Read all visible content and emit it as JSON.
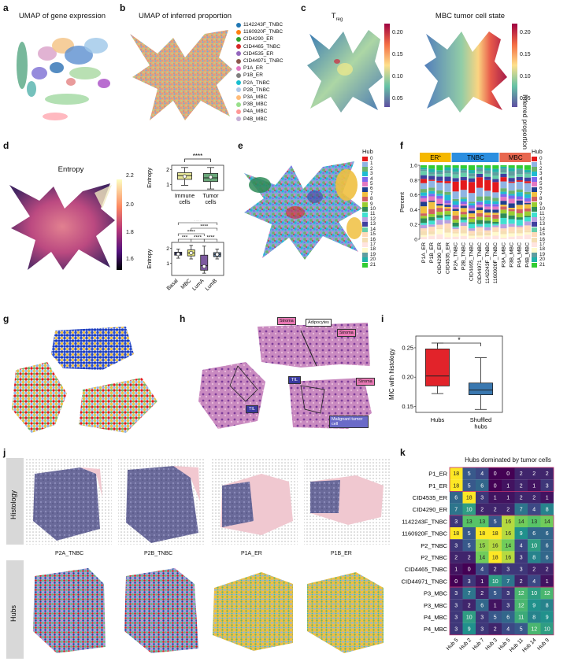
{
  "panels": {
    "a": {
      "letter": "a",
      "title": "UMAP of gene expression"
    },
    "b": {
      "letter": "b",
      "title": "UMAP of inferred proportion",
      "legend": [
        {
          "label": "1142243F_TNBC",
          "color": "#1f77b4"
        },
        {
          "label": "1160920F_TNBC",
          "color": "#ff7f0e"
        },
        {
          "label": "CID4290_ER",
          "color": "#2ca02c"
        },
        {
          "label": "CID4465_TNBC",
          "color": "#d62728"
        },
        {
          "label": "CID4535_ER",
          "color": "#9467bd"
        },
        {
          "label": "CID44971_TNBC",
          "color": "#8c564b"
        },
        {
          "label": "P1A_ER",
          "color": "#e377c2"
        },
        {
          "label": "P1B_ER",
          "color": "#7f7f7f"
        },
        {
          "label": "P2A_TNBC",
          "color": "#17becf"
        },
        {
          "label": "P2B_TNBC",
          "color": "#aec7e8"
        },
        {
          "label": "P3A_MBC",
          "color": "#ffbb78"
        },
        {
          "label": "P3B_MBC",
          "color": "#98df8a"
        },
        {
          "label": "P4A_MBC",
          "color": "#ff9896"
        },
        {
          "label": "P4B_MBC",
          "color": "#c5b0d5"
        }
      ]
    },
    "c": {
      "letter": "c",
      "title_left_main": "T",
      "title_left_sub": "reg",
      "title_right": "MBC tumor cell state",
      "colorbar_ticks": [
        "0.20",
        "0.15",
        "0.10",
        "0.05"
      ],
      "colorbar_label": "Inferred proportion"
    },
    "d": {
      "letter": "d",
      "title": "Entropy",
      "colorbar_ticks": [
        "2.2",
        "2.0",
        "1.8",
        "1.6"
      ]
    },
    "e": {
      "letter": "e",
      "hub_title": "Hub"
    },
    "f": {
      "letter": "f",
      "hub_title": "Hub",
      "ylabel": "Percent",
      "groups": [
        {
          "label": "ER",
          "sup": "+",
          "color": "#f5b800"
        },
        {
          "label": "TNBC",
          "color": "#2c8fe0"
        },
        {
          "label": "MBC",
          "color": "#e8674f"
        }
      ]
    },
    "g": {
      "letter": "g"
    },
    "h": {
      "letter": "h",
      "annotations": [
        "Stroma",
        "Adipocytes",
        "Stroma",
        "Stroma",
        "TIL",
        "TIL",
        "Malignant tumor cell"
      ]
    },
    "i": {
      "letter": "i",
      "ylabel": "MIC with histology",
      "significance": "*"
    },
    "j": {
      "letter": "j",
      "row_labels": [
        "Histology",
        "Hubs"
      ],
      "samples": [
        "P2A_TNBC",
        "P2B_TNBC",
        "P1A_ER",
        "P1B_ER"
      ]
    },
    "k": {
      "letter": "k",
      "title": "Hubs dominated by tumor cells"
    }
  },
  "hubs": [
    "0",
    "1",
    "2",
    "3",
    "4",
    "5",
    "6",
    "7",
    "8",
    "9",
    "10",
    "11",
    "12",
    "13",
    "14",
    "15",
    "16",
    "17",
    "18",
    "19",
    "20",
    "21"
  ],
  "hub_colors": [
    "#e41a1c",
    "#8fb4e3",
    "#6bb36b",
    "#1fbcd2",
    "#7b68ee",
    "#e377c2",
    "#1f3f8f",
    "#f0c040",
    "#d06060",
    "#9acd32",
    "#2e8b57",
    "#40e0d0",
    "#b9a0e0",
    "#3f3f9f",
    "#66cdaa",
    "#ffdab9",
    "#f5deb3",
    "#ffe4e1",
    "#fffacd",
    "#5f9ea0",
    "#20b2aa",
    "#32cd32"
  ],
  "chart_data": [
    {
      "type": "box",
      "panel": "d-top",
      "ylabel": "Entropy",
      "categories": [
        "Immune cells",
        "Tumor cells"
      ],
      "yticks": [
        1,
        2
      ],
      "significance": "****",
      "boxes": [
        {
          "category": "Immune cells",
          "whisker_low": 0.95,
          "q1": 1.35,
          "median": 1.6,
          "q3": 1.8,
          "whisker_high": 2.15,
          "mean": 1.55,
          "color": "#e8e89a"
        },
        {
          "category": "Tumor cells",
          "whisker_low": 0.7,
          "q1": 1.2,
          "median": 1.45,
          "q3": 1.75,
          "whisker_high": 2.15,
          "mean": 1.5,
          "color": "#6aa87a"
        }
      ]
    },
    {
      "type": "box",
      "panel": "d-bottom",
      "ylabel": "Entropy",
      "categories": [
        "Basal",
        "MBC",
        "LumA",
        "LumB"
      ],
      "yticks": [
        1,
        2
      ],
      "significance": [
        "***",
        "****",
        "****",
        "****",
        "****",
        "****"
      ],
      "boxes": [
        {
          "category": "Basal",
          "whisker_low": 1.35,
          "q1": 1.55,
          "median": 1.65,
          "q3": 1.75,
          "whisker_high": 1.95,
          "mean": 1.62,
          "color": "#3c3c78"
        },
        {
          "category": "MBC",
          "whisker_low": 1.3,
          "q1": 1.5,
          "median": 1.7,
          "q3": 1.9,
          "whisker_high": 2.2,
          "mean": 1.7,
          "color": "#e8e87a"
        },
        {
          "category": "LumA",
          "whisker_low": 0.35,
          "q1": 0.55,
          "median": 0.85,
          "q3": 1.55,
          "whisker_high": 2.15,
          "mean": 0.8,
          "color": "#7d5aa0"
        },
        {
          "category": "LumB",
          "whisker_low": 1.3,
          "q1": 1.45,
          "median": 1.6,
          "q3": 1.72,
          "whisker_high": 1.95,
          "mean": 1.6,
          "color": "#5f7a9a"
        }
      ]
    },
    {
      "type": "bar",
      "panel": "f",
      "ylabel": "Percent",
      "ylim": [
        0,
        1.0
      ],
      "yticks": [
        "0",
        "0.2",
        "0.4",
        "0.6",
        "0.8",
        "1.0"
      ],
      "categories": [
        "P1A_ER",
        "P1B_ER",
        "CID4290_ER",
        "CID4535_ER",
        "P2A_TNBC",
        "P2B_TNBC",
        "CID4465_TNBC",
        "CID44971_TNBC",
        "1142243F_TNBC",
        "1160920F_TNBC",
        "P3A_MBC",
        "P3B_MBC",
        "P4A_MBC",
        "P4B_MBC"
      ]
    },
    {
      "type": "box",
      "panel": "i",
      "ylabel": "MIC with histology",
      "categories": [
        "Hubs",
        "Shuffled hubs"
      ],
      "ylim": [
        0.14,
        0.27
      ],
      "yticks": [
        "0.15",
        "0.20",
        "0.25"
      ],
      "boxes": [
        {
          "category": "Hubs",
          "whisker_low": 0.172,
          "q1": 0.185,
          "median": 0.202,
          "q3": 0.248,
          "whisker_high": 0.258,
          "color": "#e2232a"
        },
        {
          "category": "Shuffled hubs",
          "whisker_low": 0.145,
          "q1": 0.17,
          "median": 0.178,
          "q3": 0.19,
          "whisker_high": 0.233,
          "color": "#3a78b0"
        }
      ]
    },
    {
      "type": "heatmap",
      "panel": "k",
      "title": "Hubs dominated by tumor cells",
      "rows": [
        "P1_ER",
        "P1_ER",
        "CID4535_ER",
        "CID4290_ER",
        "1142243F_TNBC",
        "1160920F_TNBC",
        "P2_TNBC",
        "P2_TNBC",
        "CID4465_TNBC",
        "CID44971_TNBC",
        "P3_MBC",
        "P3_MBC",
        "P4_MBC",
        "P4_MBC"
      ],
      "columns": [
        "Hub 5",
        "Hub 2",
        "Hub 7",
        "Hub 3",
        "Hub 5",
        "Hub 11",
        "Hub 14",
        "Hub 9"
      ],
      "values": [
        [
          18,
          5,
          4,
          0,
          0,
          2,
          2,
          2
        ],
        [
          18,
          5,
          6,
          0,
          1,
          2,
          1,
          3
        ],
        [
          6,
          18,
          3,
          1,
          1,
          2,
          2,
          1
        ],
        [
          7,
          10,
          2,
          2,
          2,
          7,
          4,
          8
        ],
        [
          3,
          13,
          13,
          5,
          16,
          14,
          13,
          14
        ],
        [
          18,
          5,
          18,
          18,
          16,
          9,
          6,
          6
        ],
        [
          3,
          5,
          15,
          16,
          14,
          4,
          10,
          6
        ],
        [
          2,
          2,
          14,
          18,
          16,
          3,
          8,
          6
        ],
        [
          1,
          0,
          4,
          2,
          3,
          3,
          2,
          2
        ],
        [
          0,
          3,
          1,
          10,
          7,
          2,
          4,
          1
        ],
        [
          3,
          7,
          2,
          5,
          3,
          12,
          10,
          12
        ],
        [
          3,
          2,
          6,
          1,
          3,
          12,
          9,
          8
        ],
        [
          3,
          10,
          3,
          5,
          6,
          11,
          8,
          9
        ],
        [
          3,
          9,
          3,
          2,
          4,
          5,
          12,
          10
        ]
      ]
    }
  ]
}
